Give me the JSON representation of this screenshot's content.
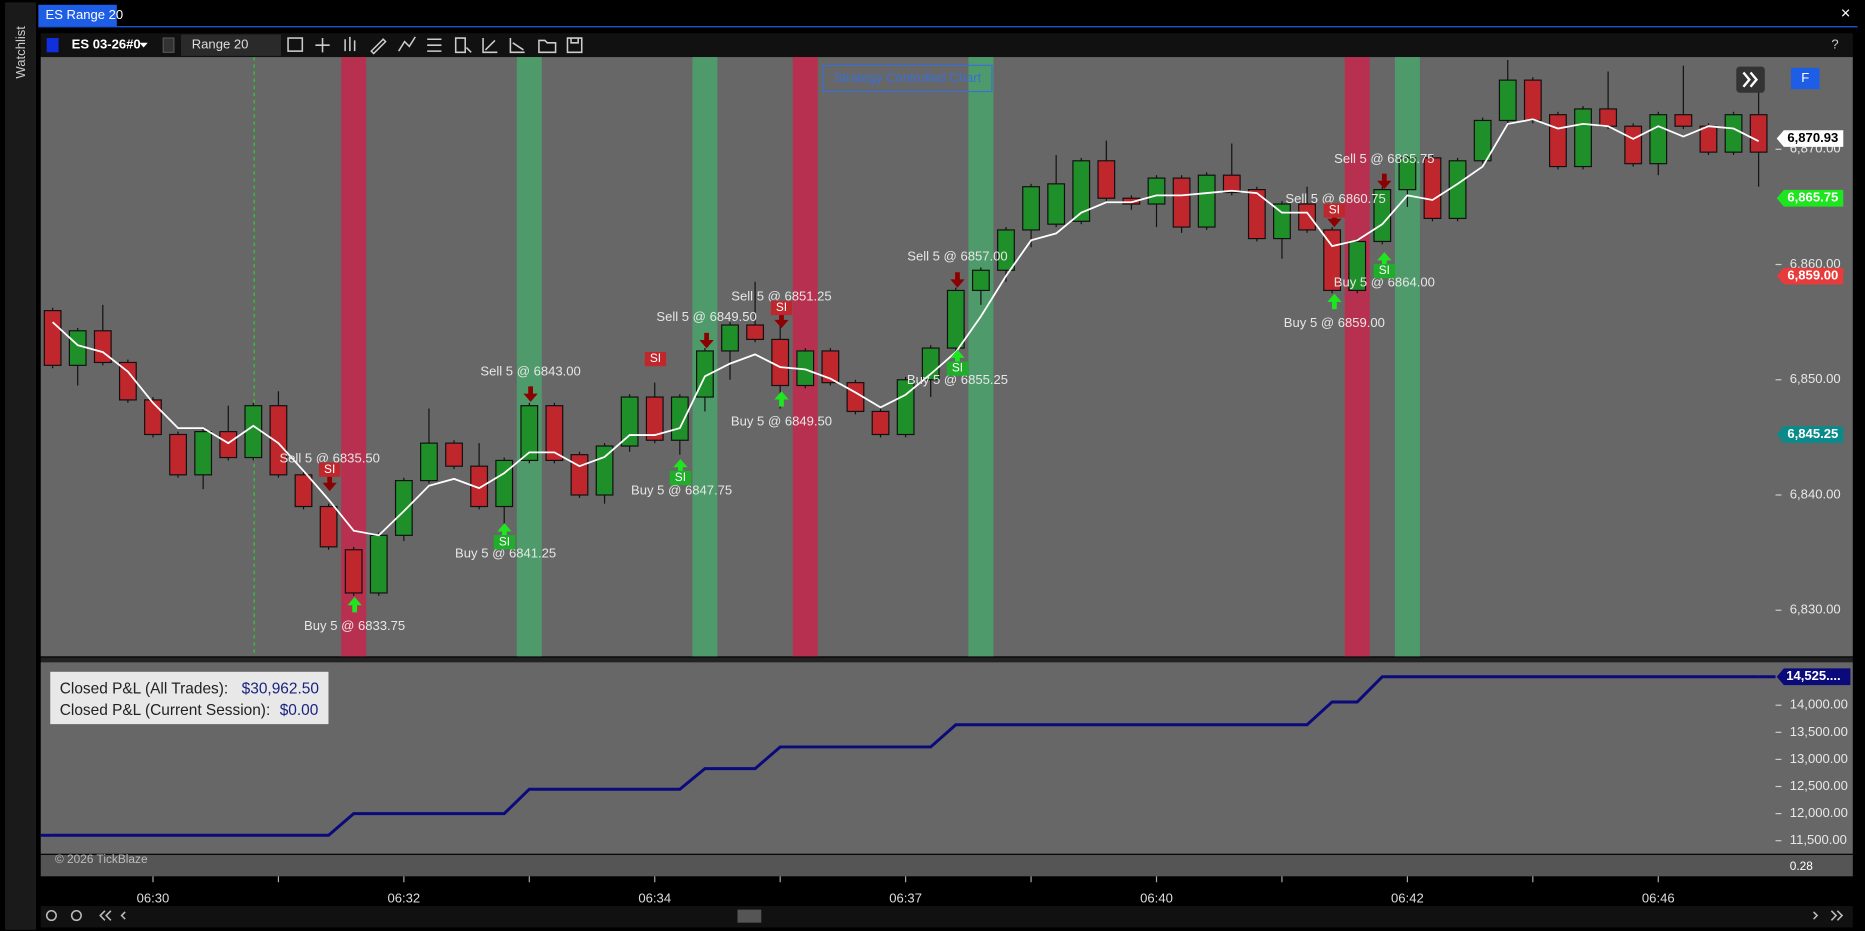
{
  "window": {
    "title": "ES Range 20",
    "close": "×"
  },
  "sidebar": {
    "label": "Watchlist"
  },
  "toolbar": {
    "instrument": "ES 03-26#0",
    "interval": "Range 20",
    "help": "?"
  },
  "overlay": {
    "strategy": "Strategy Controlled Chart",
    "copyright": "© 2026 TickBlaze",
    "scale": 0.28,
    "button": "F"
  },
  "pnl_box": {
    "rows": [
      [
        "Closed P&L (All Trades):",
        "$30,962.50"
      ],
      [
        "Closed P&L (Current Session):",
        "$0.00"
      ]
    ]
  },
  "chart_data": [
    {
      "type": "candlestick",
      "up_color": "#1f8f2a",
      "down_color": "#c0272d",
      "categories": [
        null,
        null,
        null,
        null,
        "06:30",
        null,
        null,
        null,
        null,
        null,
        null,
        null,
        null,
        null,
        "06:32",
        null,
        null,
        null,
        null,
        null,
        null,
        null,
        null,
        null,
        "06:34",
        null,
        null,
        null,
        null,
        null,
        null,
        null,
        null,
        null,
        "06:37",
        null,
        null,
        null,
        null,
        null,
        null,
        null,
        null,
        null,
        "06:40",
        null,
        null,
        null,
        null,
        null,
        null,
        null,
        null,
        null,
        "06:42",
        null,
        null,
        null,
        null,
        null,
        null,
        null,
        null,
        null,
        "06:46",
        null,
        null,
        null,
        null
      ],
      "open": [
        6856,
        6851.25,
        6854.25,
        6851.5,
        6848.25,
        6845.25,
        6841.75,
        6845.5,
        6843.25,
        6847.75,
        6841.75,
        6839,
        6835.25,
        6831.5,
        6836.5,
        6841.25,
        6844.5,
        6842.5,
        6839,
        6843,
        6847.75,
        6843.5,
        6840,
        6844.25,
        6848.5,
        6844.75,
        6848.5,
        6852.5,
        6854.75,
        6853.5,
        6849.5,
        6852.5,
        6849.75,
        6847.25,
        6845.25,
        6850,
        6852.75,
        6857.75,
        6859.5,
        6863,
        6863.5,
        6863.75,
        6869,
        6865.75,
        6865.25,
        6867.5,
        6863.25,
        6867.75,
        6866.5,
        6862.25,
        6865.25,
        6863,
        6857.75,
        6862,
        6866.5,
        6869.25,
        6864,
        6869,
        6872.5,
        6876,
        6873,
        6868.5,
        6873.5,
        6872,
        6868.75,
        6873,
        6872,
        6869.75,
        6873
      ],
      "high": [
        6856.25,
        6854.5,
        6856.5,
        6851.75,
        6848.5,
        6845.5,
        6845.75,
        6847.75,
        6848,
        6849,
        6842,
        6839.25,
        6835.5,
        6836.75,
        6841.5,
        6847.5,
        6844.75,
        6844.5,
        6843.25,
        6848,
        6848,
        6843.75,
        6844.5,
        6848.75,
        6849.75,
        6848.75,
        6852.75,
        6855,
        6858.5,
        6855.5,
        6852.75,
        6852.75,
        6850,
        6847.5,
        6850.25,
        6853,
        6858,
        6859.75,
        6863.25,
        6867,
        6869.5,
        6869.25,
        6870.75,
        6866,
        6867.75,
        6867.75,
        6868,
        6870.5,
        6866.75,
        6865.5,
        6866.75,
        6863.25,
        6862.25,
        6866.75,
        6869.5,
        6869.5,
        6869.25,
        6872.75,
        6877.75,
        6876.25,
        6873.25,
        6873.75,
        6876.75,
        6872.25,
        6873.25,
        6877.25,
        6872.25,
        6873.25,
        6876.75
      ],
      "low": [
        6851,
        6849.5,
        6851.25,
        6848,
        6845,
        6841.5,
        6840.5,
        6843,
        6843,
        6841.5,
        6838.75,
        6835.25,
        6831.25,
        6831.25,
        6836,
        6841,
        6842.25,
        6838.75,
        6836.75,
        6842.75,
        6842.75,
        6839.75,
        6839.25,
        6843.75,
        6844.5,
        6843.5,
        6847.25,
        6850,
        6853.25,
        6847.5,
        6849.25,
        6849.5,
        6847,
        6845,
        6845,
        6848.5,
        6852.5,
        6856.5,
        6858.5,
        6861.5,
        6863.25,
        6863.5,
        6865.5,
        6864.75,
        6863.25,
        6862.75,
        6863,
        6866,
        6862,
        6860.5,
        6862.75,
        6857.5,
        6857.5,
        6861.75,
        6865,
        6863.75,
        6863.75,
        6868.75,
        6872.25,
        6872.25,
        6868.25,
        6868.25,
        6871.75,
        6868.5,
        6867.75,
        6871.75,
        6869.5,
        6869.5,
        6866.75
      ],
      "close": [
        6851.25,
        6854.25,
        6851.5,
        6848.25,
        6845.25,
        6841.75,
        6845.5,
        6843.25,
        6847.75,
        6841.75,
        6839,
        6835.5,
        6831.5,
        6836.5,
        6841.25,
        6844.5,
        6842.5,
        6839,
        6843,
        6847.75,
        6843,
        6840,
        6844.25,
        6848.5,
        6844.75,
        6848.5,
        6852.5,
        6854.75,
        6853.5,
        6849.5,
        6852.5,
        6849.75,
        6847.25,
        6845.25,
        6850,
        6852.75,
        6857.75,
        6859.5,
        6863,
        6866.75,
        6867,
        6869,
        6865.75,
        6865.25,
        6867.5,
        6863.25,
        6867.75,
        6866.25,
        6862.25,
        6865.25,
        6863,
        6857.75,
        6862,
        6866.5,
        6869.25,
        6864,
        6869,
        6872.5,
        6876,
        6872.5,
        6868.5,
        6873.5,
        6872,
        6868.75,
        6873,
        6872,
        6869.75,
        6873,
        6869.75
      ],
      "line": {
        "color": "#ffffff",
        "values": [
          6855.0,
          6853.0,
          6852.4,
          6850.7,
          6848.0,
          6845.8,
          6845.8,
          6844.5,
          6846.0,
          6844.5,
          6842.1,
          6839.6,
          6836.9,
          6836.5,
          6838.6,
          6840.8,
          6841.4,
          6840.6,
          6841.9,
          6843.7,
          6843.7,
          6842.5,
          6843.3,
          6845.2,
          6845.2,
          6845.8,
          6850.3,
          6851.4,
          6852.2,
          6851.1,
          6850.9,
          6850.1,
          6848.9,
          6847.6,
          6848.7,
          6850.5,
          6852.4,
          6855.5,
          6859.0,
          6862.1,
          6862.7,
          6864.5,
          6865.4,
          6865.4,
          6866.0,
          6866.0,
          6866.2,
          6866.4,
          6866.2,
          6864.5,
          6864.5,
          6861.6,
          6862.1,
          6863.5,
          6866.0,
          6865.6,
          6867.0,
          6868.5,
          6872.2,
          6872.6,
          6871.8,
          6872.2,
          6872.0,
          6870.9,
          6872.0,
          6871.1,
          6872.0,
          6871.8,
          6870.7
        ]
      },
      "ylim": [
        6826,
        6878
      ],
      "yticks": [
        {
          "value": 6830,
          "label": "6,830.00"
        },
        {
          "value": 6840,
          "label": "6,840.00"
        },
        {
          "value": 6850,
          "label": "6,850.00"
        },
        {
          "value": 6860,
          "label": "6,860.00"
        },
        {
          "value": 6870,
          "label": "6,870.00"
        }
      ],
      "price_markers": [
        {
          "value": 6870.93,
          "label": "6,870.93",
          "color": "#ffffff"
        },
        {
          "value": 6865.75,
          "label": "6,865.75",
          "color": "#1ee61e"
        },
        {
          "value": 6859,
          "label": "6,859.00",
          "color": "#e83b3b"
        },
        {
          "value": 6845.25,
          "label": "6,845.25",
          "color": "#0b8a8a"
        }
      ],
      "signal": "SI",
      "trades": [
        "Sell 5 @ 6835.50",
        "Buy 5 @ 6833.75",
        "Buy 5 @ 6841.25",
        "Sell 5 @ 6843.00",
        "Buy 5 @ 6847.75",
        "Sell 5 @ 6849.50",
        "Sell 5 @ 6851.25",
        "Buy 5 @ 6849.50",
        "Sell 5 @ 6857.00",
        "Buy 5 @ 6855.25",
        "Sell 5 @ 6860.75",
        "Buy 5 @ 6859.00",
        "Sell 5 @ 6865.75",
        "Buy 5 @ 6864.00"
      ]
    },
    {
      "type": "line",
      "color": "#0a0a7a",
      "values": [
        11600,
        11600,
        11600,
        11600,
        11600,
        11600,
        11600,
        11600,
        11600,
        11600,
        11600,
        11600,
        12000,
        12000,
        12000,
        12000,
        12000,
        12000,
        12000,
        12450,
        12450,
        12450,
        12450,
        12450,
        12450,
        12450,
        12830,
        12830,
        12830,
        13230,
        13230,
        13230,
        13230,
        13230,
        13230,
        13230,
        13640,
        13640,
        13640,
        13640,
        13640,
        13640,
        13640,
        13640,
        13640,
        13640,
        13640,
        13640,
        13640,
        13640,
        13640,
        14060,
        14060,
        14525,
        14525,
        14525,
        14525,
        14525,
        14525,
        14525,
        14525,
        14525,
        14525,
        14525,
        14525,
        14525,
        14525,
        14525,
        14525
      ],
      "ylim": [
        11260,
        14770
      ],
      "yticks": [
        {
          "value": 11500,
          "label": "11,500.00"
        },
        {
          "value": 12000,
          "label": "12,000.00"
        },
        {
          "value": 12500,
          "label": "12,500.00"
        },
        {
          "value": 13000,
          "label": "13,000.00"
        },
        {
          "value": 13500,
          "label": "13,500.00"
        },
        {
          "value": 14000,
          "label": "14,000.00"
        }
      ],
      "marker": {
        "value": 14525,
        "label": "14,525...."
      }
    }
  ]
}
